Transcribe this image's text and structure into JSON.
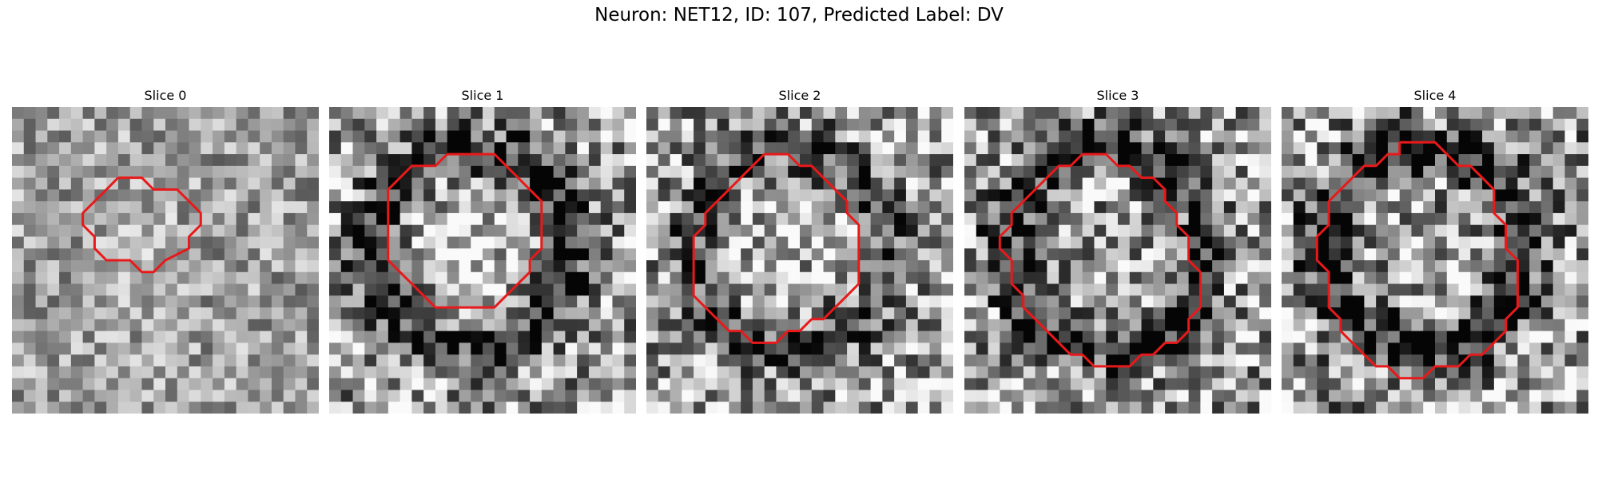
{
  "figure": {
    "title": "Neuron: NET12, ID: 107, Predicted Label: DV"
  },
  "panels": [
    {
      "title": "Slice 0",
      "seed": 11,
      "contrast": 0.55,
      "ring_dark": 0.0,
      "center_light": 0.05,
      "contour": [
        [
          9,
          6
        ],
        [
          11,
          6
        ],
        [
          12,
          7
        ],
        [
          14,
          7
        ],
        [
          16,
          9
        ],
        [
          16,
          10
        ],
        [
          15,
          11
        ],
        [
          15,
          12
        ],
        [
          13,
          13
        ],
        [
          12,
          14
        ],
        [
          11,
          14
        ],
        [
          10,
          13
        ],
        [
          8,
          13
        ],
        [
          7,
          12
        ],
        [
          7,
          11
        ],
        [
          6,
          10
        ],
        [
          6,
          9
        ],
        [
          7,
          8
        ],
        [
          8,
          7
        ],
        [
          9,
          6
        ]
      ]
    },
    {
      "title": "Slice 1",
      "seed": 23,
      "contrast": 0.9,
      "ring_dark": 0.45,
      "center_light": 0.3,
      "contour": [
        [
          10,
          4
        ],
        [
          14,
          4
        ],
        [
          16,
          6
        ],
        [
          17,
          7
        ],
        [
          18,
          8
        ],
        [
          18,
          12
        ],
        [
          17,
          13
        ],
        [
          17,
          14
        ],
        [
          16,
          15
        ],
        [
          15,
          16
        ],
        [
          14,
          17
        ],
        [
          9,
          17
        ],
        [
          8,
          16
        ],
        [
          7,
          15
        ],
        [
          6,
          14
        ],
        [
          5,
          13
        ],
        [
          5,
          7
        ],
        [
          7,
          5
        ],
        [
          9,
          5
        ],
        [
          10,
          4
        ]
      ]
    },
    {
      "title": "Slice 2",
      "seed": 37,
      "contrast": 0.9,
      "ring_dark": 0.35,
      "center_light": 0.15,
      "contour": [
        [
          10,
          4
        ],
        [
          12,
          4
        ],
        [
          13,
          5
        ],
        [
          14,
          5
        ],
        [
          15,
          6
        ],
        [
          16,
          7
        ],
        [
          17,
          8
        ],
        [
          17,
          9
        ],
        [
          18,
          10
        ],
        [
          18,
          15
        ],
        [
          17,
          16
        ],
        [
          16,
          17
        ],
        [
          15,
          18
        ],
        [
          14,
          18
        ],
        [
          13,
          19
        ],
        [
          12,
          19
        ],
        [
          11,
          20
        ],
        [
          9,
          20
        ],
        [
          8,
          19
        ],
        [
          7,
          19
        ],
        [
          6,
          18
        ],
        [
          5,
          17
        ],
        [
          4,
          16
        ],
        [
          4,
          11
        ],
        [
          5,
          10
        ],
        [
          5,
          9
        ],
        [
          6,
          8
        ],
        [
          7,
          7
        ],
        [
          8,
          6
        ],
        [
          9,
          5
        ],
        [
          10,
          4
        ]
      ]
    },
    {
      "title": "Slice 3",
      "seed": 53,
      "contrast": 0.95,
      "ring_dark": 0.5,
      "center_light": 0.05,
      "contour": [
        [
          10,
          4
        ],
        [
          12,
          4
        ],
        [
          13,
          5
        ],
        [
          14,
          5
        ],
        [
          15,
          6
        ],
        [
          16,
          6
        ],
        [
          17,
          7
        ],
        [
          17,
          8
        ],
        [
          18,
          9
        ],
        [
          18,
          10
        ],
        [
          19,
          11
        ],
        [
          19,
          13
        ],
        [
          20,
          14
        ],
        [
          20,
          17
        ],
        [
          19,
          18
        ],
        [
          19,
          19
        ],
        [
          18,
          20
        ],
        [
          17,
          20
        ],
        [
          16,
          21
        ],
        [
          15,
          21
        ],
        [
          14,
          22
        ],
        [
          11,
          22
        ],
        [
          10,
          21
        ],
        [
          9,
          21
        ],
        [
          8,
          20
        ],
        [
          7,
          19
        ],
        [
          6,
          18
        ],
        [
          5,
          17
        ],
        [
          5,
          16
        ],
        [
          4,
          15
        ],
        [
          4,
          13
        ],
        [
          3,
          12
        ],
        [
          3,
          11
        ],
        [
          4,
          10
        ],
        [
          4,
          9
        ],
        [
          5,
          8
        ],
        [
          6,
          7
        ],
        [
          7,
          6
        ],
        [
          8,
          5
        ],
        [
          9,
          5
        ],
        [
          10,
          4
        ]
      ]
    },
    {
      "title": "Slice 4",
      "seed": 71,
      "contrast": 1.0,
      "ring_dark": 0.55,
      "center_light": 0.1,
      "contour": [
        [
          10,
          3
        ],
        [
          13,
          3
        ],
        [
          14,
          4
        ],
        [
          15,
          5
        ],
        [
          16,
          5
        ],
        [
          17,
          6
        ],
        [
          18,
          7
        ],
        [
          18,
          9
        ],
        [
          19,
          10
        ],
        [
          19,
          12
        ],
        [
          20,
          13
        ],
        [
          20,
          17
        ],
        [
          19,
          18
        ],
        [
          19,
          19
        ],
        [
          18,
          20
        ],
        [
          17,
          21
        ],
        [
          16,
          21
        ],
        [
          15,
          22
        ],
        [
          13,
          22
        ],
        [
          12,
          23
        ],
        [
          10,
          23
        ],
        [
          9,
          22
        ],
        [
          8,
          22
        ],
        [
          7,
          21
        ],
        [
          6,
          20
        ],
        [
          5,
          19
        ],
        [
          5,
          18
        ],
        [
          4,
          17
        ],
        [
          4,
          14
        ],
        [
          3,
          13
        ],
        [
          3,
          11
        ],
        [
          4,
          10
        ],
        [
          4,
          8
        ],
        [
          5,
          7
        ],
        [
          6,
          6
        ],
        [
          7,
          5
        ],
        [
          8,
          5
        ],
        [
          9,
          4
        ],
        [
          10,
          4
        ],
        [
          10,
          3
        ]
      ]
    }
  ]
}
